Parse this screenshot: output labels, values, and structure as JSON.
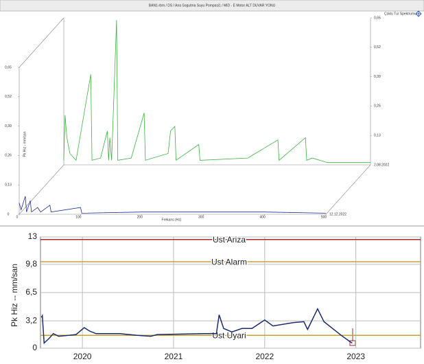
{
  "header": {
    "title": "BAN1-rbm / DS / Ana Sogutma Suyu Pompasi1 / MID - E Motor ALT DUVAR YONU"
  },
  "chart_data": [
    {
      "type": "waterfall",
      "legend": "Çoklu Tur Spektrumu",
      "y_label": "Pk Hız - mm/san",
      "x_label": "Frekans (Hz)",
      "xlim": [
        0,
        500
      ],
      "xticks": [
        0,
        100,
        200,
        300,
        400,
        500
      ],
      "ylim": [
        0,
        0.65
      ],
      "yticks": [
        0,
        {
          "value": 0.13,
          "label": "0,13"
        },
        {
          "value": 0.26,
          "label": "0,26"
        },
        {
          "value": 0.39,
          "label": "0,39"
        },
        {
          "value": 0.52,
          "label": "0,52"
        },
        {
          "value": 0.65,
          "label": "0,65"
        }
      ],
      "series": [
        {
          "name": "2.08.2022",
          "color": "#3cb043",
          "x": [
            0,
            2,
            5,
            10,
            20,
            44,
            46,
            60,
            71,
            73,
            75,
            78,
            86,
            88,
            110,
            131,
            133,
            170,
            174,
            181,
            183,
            220,
            222,
            300,
            349,
            351,
            394,
            396,
            405,
            430,
            500
          ],
          "values": [
            0.02,
            0.22,
            0.12,
            0.05,
            0.02,
            0.4,
            0.02,
            0.03,
            0.15,
            0.02,
            0.12,
            0.02,
            0.64,
            0.02,
            0.03,
            0.23,
            0.02,
            0.05,
            0.15,
            0.17,
            0.02,
            0.09,
            0.02,
            0.03,
            0.11,
            0.02,
            0.12,
            0.02,
            0.03,
            0.01,
            0.01
          ]
        },
        {
          "name": "12.12.2022",
          "color": "#1a2a9c",
          "x": [
            0,
            3,
            10,
            12,
            18,
            20,
            30,
            35,
            50,
            52,
            100,
            102,
            200,
            300,
            400,
            500
          ],
          "values": [
            0.05,
            0.02,
            0.08,
            0.01,
            0.06,
            0.01,
            0.03,
            0.01,
            0.04,
            0.01,
            0.03,
            0.005,
            0.01,
            0.01,
            0.01,
            0.005
          ]
        }
      ]
    },
    {
      "type": "line",
      "y_label": "Pk Hiz -- mm/san",
      "color": "#1a2a6c",
      "xlim": [
        2019.54,
        2023.71
      ],
      "xticks": [
        2020,
        2021,
        2022,
        2023
      ],
      "ylim": [
        0,
        13
      ],
      "yticks": [
        0,
        {
          "value": 3.2,
          "label": "3,2"
        },
        {
          "value": 6.5,
          "label": "6,5"
        },
        {
          "value": 9.8,
          "label": "9,8"
        },
        13
      ],
      "grid": true,
      "thresholds": [
        {
          "label": "Ust Ariza",
          "value": 12.7,
          "color": "#a52a2a"
        },
        {
          "label": "Ust Alarm",
          "value": 10.1,
          "color": "#c8a030"
        },
        {
          "label": "Ust Uyari",
          "value": 1.5,
          "color": "#c8a030"
        }
      ],
      "x": [
        2019.55,
        2019.56,
        2019.58,
        2019.64,
        2019.68,
        2019.74,
        2019.85,
        2019.93,
        2020.02,
        2020.08,
        2020.15,
        2020.41,
        2020.6,
        2020.75,
        2020.82,
        2021.34,
        2021.47,
        2021.5,
        2021.55,
        2021.64,
        2021.75,
        2021.86,
        2022.0,
        2022.09,
        2022.32,
        2022.43,
        2022.47,
        2022.58,
        2022.65,
        2022.84,
        2022.93,
        2022.96
      ],
      "values": [
        3.6,
        3.8,
        0.6,
        1.2,
        1.7,
        1.4,
        1.5,
        1.6,
        2.4,
        2.0,
        1.7,
        1.7,
        1.5,
        1.4,
        1.6,
        1.7,
        1.7,
        3.9,
        2.3,
        1.9,
        2.3,
        2.3,
        3.3,
        2.6,
        3.0,
        3.1,
        2.2,
        4.6,
        3.1,
        1.5,
        0.8,
        0.6
      ]
    }
  ]
}
